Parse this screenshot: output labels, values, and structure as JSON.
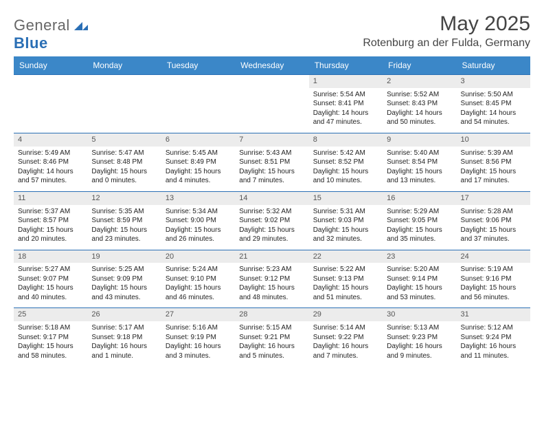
{
  "logo": {
    "general": "General",
    "blue": "Blue"
  },
  "title": "May 2025",
  "location": "Rotenburg an der Fulda, Germany",
  "colors": {
    "header_bg": "#3b87c8",
    "header_fg": "#ffffff",
    "rule": "#2a6fb5",
    "daynum_bg": "#ececec",
    "daynum_fg": "#555555",
    "logo_accent": "#2a6fb5"
  },
  "day_headers": [
    "Sunday",
    "Monday",
    "Tuesday",
    "Wednesday",
    "Thursday",
    "Friday",
    "Saturday"
  ],
  "weeks": [
    [
      null,
      null,
      null,
      null,
      {
        "n": "1",
        "sr": "5:54 AM",
        "ss": "8:41 PM",
        "dl": "14 hours and 47 minutes."
      },
      {
        "n": "2",
        "sr": "5:52 AM",
        "ss": "8:43 PM",
        "dl": "14 hours and 50 minutes."
      },
      {
        "n": "3",
        "sr": "5:50 AM",
        "ss": "8:45 PM",
        "dl": "14 hours and 54 minutes."
      }
    ],
    [
      {
        "n": "4",
        "sr": "5:49 AM",
        "ss": "8:46 PM",
        "dl": "14 hours and 57 minutes."
      },
      {
        "n": "5",
        "sr": "5:47 AM",
        "ss": "8:48 PM",
        "dl": "15 hours and 0 minutes."
      },
      {
        "n": "6",
        "sr": "5:45 AM",
        "ss": "8:49 PM",
        "dl": "15 hours and 4 minutes."
      },
      {
        "n": "7",
        "sr": "5:43 AM",
        "ss": "8:51 PM",
        "dl": "15 hours and 7 minutes."
      },
      {
        "n": "8",
        "sr": "5:42 AM",
        "ss": "8:52 PM",
        "dl": "15 hours and 10 minutes."
      },
      {
        "n": "9",
        "sr": "5:40 AM",
        "ss": "8:54 PM",
        "dl": "15 hours and 13 minutes."
      },
      {
        "n": "10",
        "sr": "5:39 AM",
        "ss": "8:56 PM",
        "dl": "15 hours and 17 minutes."
      }
    ],
    [
      {
        "n": "11",
        "sr": "5:37 AM",
        "ss": "8:57 PM",
        "dl": "15 hours and 20 minutes."
      },
      {
        "n": "12",
        "sr": "5:35 AM",
        "ss": "8:59 PM",
        "dl": "15 hours and 23 minutes."
      },
      {
        "n": "13",
        "sr": "5:34 AM",
        "ss": "9:00 PM",
        "dl": "15 hours and 26 minutes."
      },
      {
        "n": "14",
        "sr": "5:32 AM",
        "ss": "9:02 PM",
        "dl": "15 hours and 29 minutes."
      },
      {
        "n": "15",
        "sr": "5:31 AM",
        "ss": "9:03 PM",
        "dl": "15 hours and 32 minutes."
      },
      {
        "n": "16",
        "sr": "5:29 AM",
        "ss": "9:05 PM",
        "dl": "15 hours and 35 minutes."
      },
      {
        "n": "17",
        "sr": "5:28 AM",
        "ss": "9:06 PM",
        "dl": "15 hours and 37 minutes."
      }
    ],
    [
      {
        "n": "18",
        "sr": "5:27 AM",
        "ss": "9:07 PM",
        "dl": "15 hours and 40 minutes."
      },
      {
        "n": "19",
        "sr": "5:25 AM",
        "ss": "9:09 PM",
        "dl": "15 hours and 43 minutes."
      },
      {
        "n": "20",
        "sr": "5:24 AM",
        "ss": "9:10 PM",
        "dl": "15 hours and 46 minutes."
      },
      {
        "n": "21",
        "sr": "5:23 AM",
        "ss": "9:12 PM",
        "dl": "15 hours and 48 minutes."
      },
      {
        "n": "22",
        "sr": "5:22 AM",
        "ss": "9:13 PM",
        "dl": "15 hours and 51 minutes."
      },
      {
        "n": "23",
        "sr": "5:20 AM",
        "ss": "9:14 PM",
        "dl": "15 hours and 53 minutes."
      },
      {
        "n": "24",
        "sr": "5:19 AM",
        "ss": "9:16 PM",
        "dl": "15 hours and 56 minutes."
      }
    ],
    [
      {
        "n": "25",
        "sr": "5:18 AM",
        "ss": "9:17 PM",
        "dl": "15 hours and 58 minutes."
      },
      {
        "n": "26",
        "sr": "5:17 AM",
        "ss": "9:18 PM",
        "dl": "16 hours and 1 minute."
      },
      {
        "n": "27",
        "sr": "5:16 AM",
        "ss": "9:19 PM",
        "dl": "16 hours and 3 minutes."
      },
      {
        "n": "28",
        "sr": "5:15 AM",
        "ss": "9:21 PM",
        "dl": "16 hours and 5 minutes."
      },
      {
        "n": "29",
        "sr": "5:14 AM",
        "ss": "9:22 PM",
        "dl": "16 hours and 7 minutes."
      },
      {
        "n": "30",
        "sr": "5:13 AM",
        "ss": "9:23 PM",
        "dl": "16 hours and 9 minutes."
      },
      {
        "n": "31",
        "sr": "5:12 AM",
        "ss": "9:24 PM",
        "dl": "16 hours and 11 minutes."
      }
    ]
  ],
  "labels": {
    "sunrise": "Sunrise: ",
    "sunset": "Sunset: ",
    "daylight": "Daylight: "
  }
}
